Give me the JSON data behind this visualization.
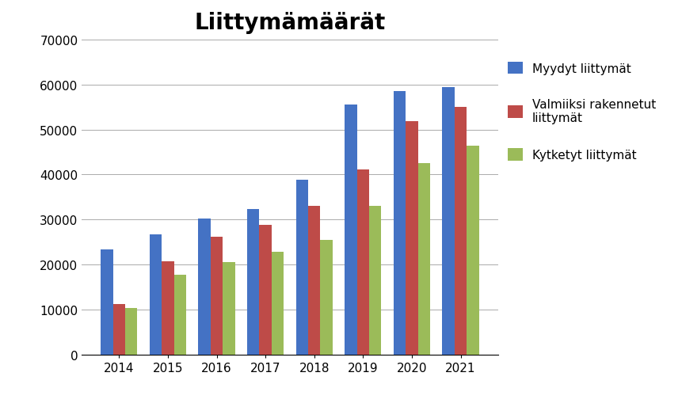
{
  "title": "Liittymämäärät",
  "years": [
    2014,
    2015,
    2016,
    2017,
    2018,
    2019,
    2020,
    2021
  ],
  "myydyt": [
    23400,
    26700,
    30300,
    32300,
    38900,
    55500,
    58500,
    59500
  ],
  "valmiiksi": [
    11270,
    20800,
    26200,
    28900,
    33000,
    41100,
    51900,
    55000
  ],
  "kytketyt": [
    10400,
    17700,
    20600,
    22900,
    25500,
    33000,
    42500,
    46500
  ],
  "color_myydyt": "#4472C4",
  "color_valmiiksi": "#BE4B48",
  "color_kytketyt": "#9BBB59",
  "legend_label_0": "Myydyt liittymät",
  "legend_label_1": "Valmiiksi rakennetut\nliittymät",
  "legend_label_2": "Kytketyt liittymät",
  "ylim": [
    0,
    70000
  ],
  "yticks": [
    0,
    10000,
    20000,
    30000,
    40000,
    50000,
    60000,
    70000
  ],
  "ytick_labels": [
    "0",
    "10000",
    "20000",
    "30000",
    "40000",
    "50000",
    "60000",
    "70000"
  ],
  "title_fontsize": 20,
  "tick_fontsize": 11,
  "legend_fontsize": 11,
  "bar_width": 0.25,
  "figsize": [
    8.61,
    5.1
  ],
  "dpi": 100
}
